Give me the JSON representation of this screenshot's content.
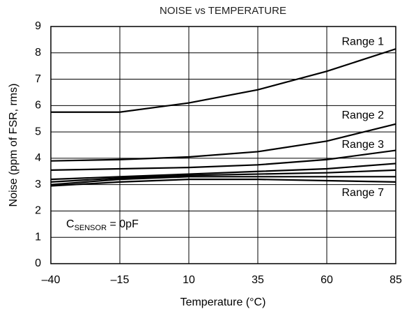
{
  "chart_data": {
    "type": "line",
    "title": "NOISE vs TEMPERATURE",
    "x_label": "Temperature (°C)",
    "y_label": "Noise (ppm of FSR, rms)",
    "annotation": {
      "base": "C",
      "sub": "SENSOR",
      "rest": " = 0pF"
    },
    "x": [
      -40,
      -15,
      10,
      35,
      60,
      85
    ],
    "series": [
      {
        "name": "Range 1",
        "color": "#000000",
        "values": [
          5.75,
          5.75,
          6.1,
          6.6,
          7.3,
          8.15
        ]
      },
      {
        "name": "Range 2",
        "color": "#000000",
        "values": [
          3.9,
          3.95,
          4.05,
          4.25,
          4.65,
          5.3
        ]
      },
      {
        "name": "Range 3",
        "color": "#000000",
        "values": [
          3.55,
          3.6,
          3.65,
          3.75,
          3.95,
          4.3
        ]
      },
      {
        "color": "#000000",
        "values": [
          3.2,
          3.3,
          3.4,
          3.5,
          3.6,
          3.8
        ]
      },
      {
        "color": "#000000",
        "values": [
          3.1,
          3.25,
          3.35,
          3.4,
          3.45,
          3.55
        ]
      },
      {
        "color": "#000000",
        "values": [
          3.0,
          3.2,
          3.3,
          3.3,
          3.3,
          3.3
        ]
      },
      {
        "name": "Range 7",
        "color": "#000000",
        "values": [
          2.95,
          3.1,
          3.2,
          3.2,
          3.15,
          3.1
        ]
      }
    ],
    "xlim": [
      -40,
      85
    ],
    "xticks": [
      {
        "value": -40,
        "label": "–40"
      },
      {
        "value": -15,
        "label": "–15"
      },
      10,
      35,
      60,
      85
    ],
    "ylim": [
      0,
      9
    ],
    "yticks": [
      0,
      1,
      2,
      3,
      4,
      5,
      6,
      7,
      8,
      9
    ],
    "grid": true
  }
}
